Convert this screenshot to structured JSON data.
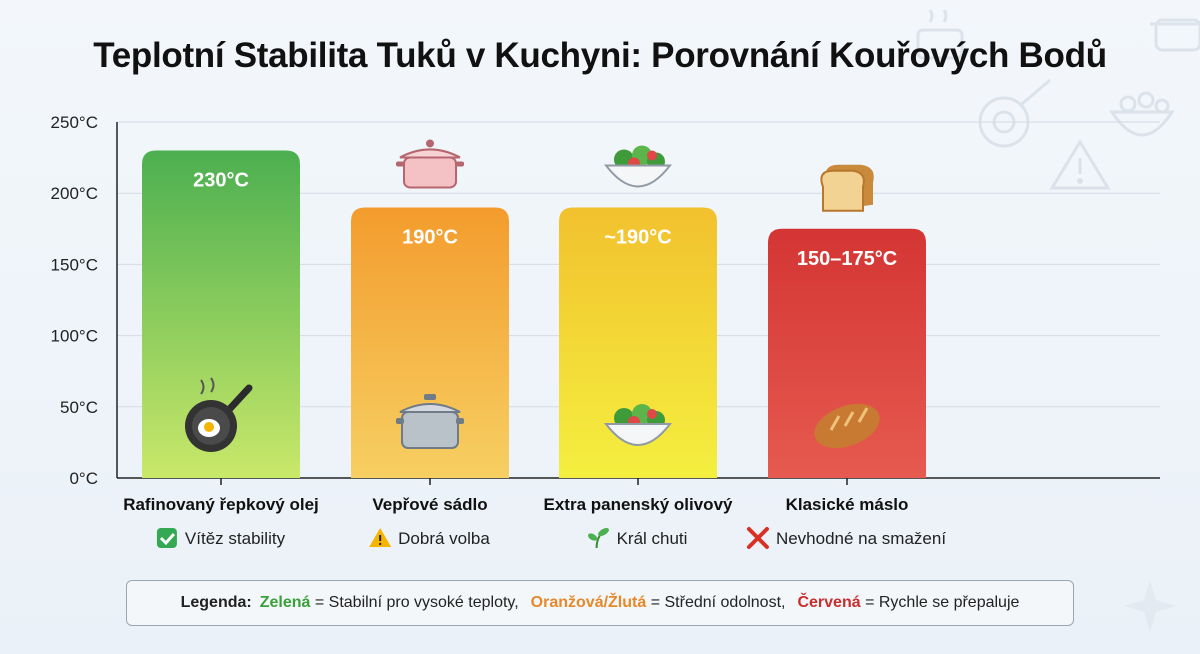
{
  "title": "Teplotní Stabilita Tuků v Kuchyni: Porovnání Kouřových Bodů",
  "chart_data": {
    "type": "bar",
    "ylim": [
      0,
      250
    ],
    "yticks": [
      0,
      50,
      100,
      150,
      200,
      250
    ],
    "ytick_labels": [
      "0°C",
      "50°C",
      "100°C",
      "150°C",
      "200°C",
      "250°C"
    ],
    "grid": true,
    "bars": [
      {
        "category": "Rafinovaný řepkový olej",
        "value": 230,
        "data_label": "230°C",
        "status_icon": "check-mark",
        "status": "Vítěz stability",
        "color_top": "#4caf50",
        "color_bottom": "#c9e86a",
        "bottom_icon": "frying-pan",
        "top_icon": ""
      },
      {
        "category": "Vepřové sádlo",
        "value": 190,
        "data_label": "190°C",
        "status_icon": "warning-sign",
        "status": "Dobrá volba",
        "color_top": "#f39c2d",
        "color_bottom": "#f7cf62",
        "bottom_icon": "cooking-pot",
        "top_icon": "pink-pot"
      },
      {
        "category": "Extra panenský olivový",
        "value": 190,
        "data_label": "~190°C",
        "status_icon": "sprout",
        "status": "Král chuti",
        "color_top": "#f2c12e",
        "color_bottom": "#f4ef3f",
        "bottom_icon": "salad-bowl",
        "top_icon": "salad-bowl"
      },
      {
        "category": "Klasické máslo",
        "value": 175,
        "data_label": "150–175°C",
        "status_icon": "cross-mark",
        "status": "Nevhodné na smažení",
        "color_top": "#d43534",
        "color_bottom": "#e65a4f",
        "bottom_icon": "bread-loaf",
        "top_icon": "toast-bread"
      }
    ]
  },
  "legend": {
    "label": "Legenda:",
    "items": [
      {
        "key": "Zelená",
        "text": "= Stabilní pro vysoké teploty,",
        "color": "#3aa03a"
      },
      {
        "key": "Oranžová/Žlutá",
        "text": "= Střední odolnost,",
        "color": "#e5892a"
      },
      {
        "key": "Červená",
        "text": "= Rychle se přepaluje",
        "color": "#c82e2e"
      }
    ]
  }
}
